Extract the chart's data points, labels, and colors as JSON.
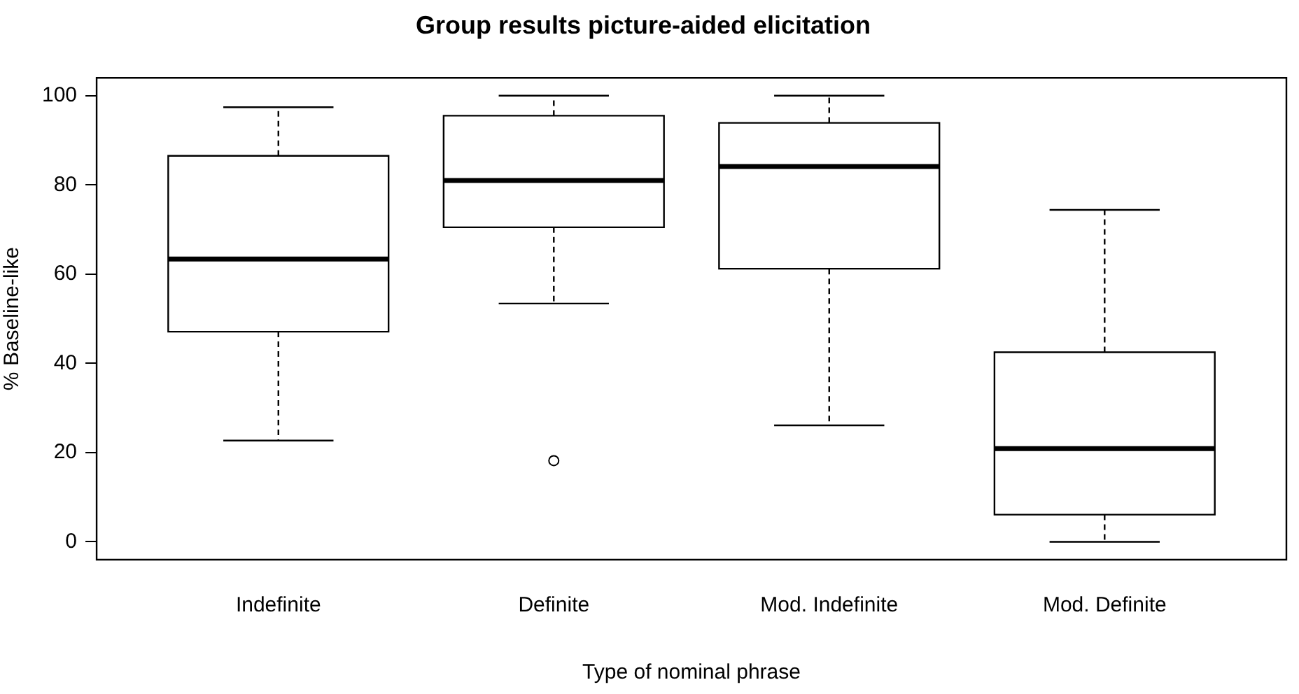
{
  "chart_data": {
    "type": "box",
    "title": "Group results picture-aided elicitation",
    "xlabel": "Type of nominal phrase",
    "ylabel": "% Baseline-like",
    "categories": [
      "Indefinite",
      "Definite",
      "Mod. Indefinite",
      "Mod. Definite"
    ],
    "boxes": [
      {
        "low": 22.7,
        "q1": 47.1,
        "median": 63.4,
        "q3": 86.5,
        "high": 97.4
      },
      {
        "low": 53.4,
        "q1": 70.5,
        "median": 81.0,
        "q3": 95.5,
        "high": 100,
        "outliers": [
          18.2
        ]
      },
      {
        "low": 26.1,
        "q1": 61.2,
        "median": 84.1,
        "q3": 93.9,
        "high": 100
      },
      {
        "low": 0,
        "q1": 6.1,
        "median": 20.9,
        "q3": 42.5,
        "high": 74.4
      }
    ],
    "color": "#000000",
    "ylim": [
      -4,
      104
    ],
    "yticks": [
      0,
      20,
      40,
      60,
      80,
      100
    ],
    "grid": false
  }
}
